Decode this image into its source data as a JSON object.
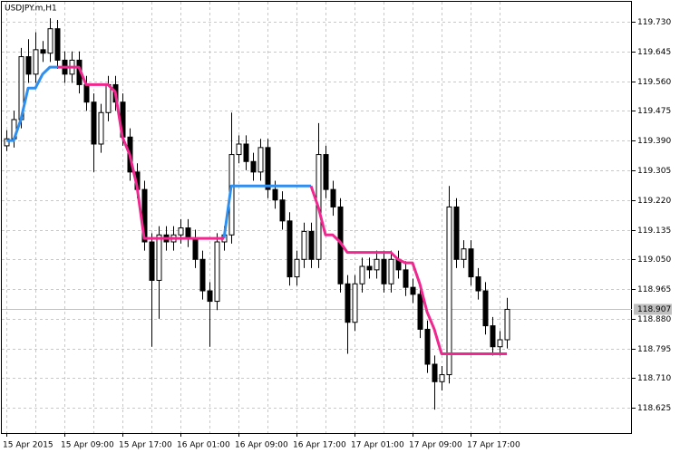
{
  "chart_data": {
    "type": "candlestick",
    "title": "USDJPY.m,H1",
    "categories": [
      "15 Apr 2015",
      null,
      null,
      null,
      null,
      null,
      null,
      null,
      "15 Apr 09:00",
      null,
      null,
      null,
      null,
      null,
      null,
      null,
      "15 Apr 17:00",
      null,
      null,
      null,
      null,
      null,
      null,
      null,
      "16 Apr 01:00",
      null,
      null,
      null,
      null,
      null,
      null,
      null,
      "16 Apr 09:00",
      null,
      null,
      null,
      null,
      null,
      null,
      null,
      "16 Apr 17:00",
      null,
      null,
      null,
      null,
      null,
      null,
      null,
      "17 Apr 01:00",
      null,
      null,
      null,
      null,
      null,
      null,
      null,
      "17 Apr 09:00",
      null,
      null,
      null,
      null,
      null,
      null,
      null,
      "17 Apr 17:00",
      null,
      null,
      null,
      null,
      null
    ],
    "open": [
      119.375,
      119.395,
      119.45,
      119.63,
      119.58,
      119.65,
      119.64,
      119.71,
      119.62,
      119.58,
      119.62,
      119.55,
      119.5,
      119.38,
      119.47,
      119.55,
      119.5,
      119.4,
      119.3,
      119.25,
      119.1,
      118.99,
      119.12,
      119.1,
      119.12,
      119.14,
      119.11,
      119.05,
      118.96,
      118.93,
      119.1,
      119.12,
      119.35,
      119.38,
      119.33,
      119.3,
      119.37,
      119.25,
      119.22,
      119.16,
      119.0,
      119.05,
      119.13,
      119.05,
      119.35,
      119.25,
      119.2,
      118.98,
      118.87,
      118.98,
      119.03,
      119.02,
      119.05,
      118.98,
      119.05,
      119.02,
      118.97,
      118.95,
      118.85,
      118.75,
      118.7,
      118.72,
      119.2,
      119.05,
      119.08,
      119.0,
      118.96,
      118.86,
      118.8,
      118.82
    ],
    "high": [
      119.42,
      119.475,
      119.655,
      119.68,
      119.7,
      119.675,
      119.74,
      119.735,
      119.645,
      119.645,
      119.645,
      119.575,
      119.525,
      119.495,
      119.575,
      119.575,
      119.525,
      119.425,
      119.325,
      119.275,
      119.125,
      119.145,
      119.145,
      119.145,
      119.165,
      119.165,
      119.135,
      119.075,
      118.985,
      119.125,
      119.145,
      119.47,
      119.405,
      119.405,
      119.355,
      119.395,
      119.395,
      119.275,
      119.245,
      119.185,
      119.075,
      119.155,
      119.155,
      119.44,
      119.375,
      119.275,
      119.225,
      119.005,
      119.005,
      119.055,
      119.055,
      119.075,
      119.075,
      119.075,
      119.075,
      119.045,
      118.995,
      118.975,
      118.875,
      118.775,
      118.745,
      119.26,
      119.225,
      119.105,
      119.105,
      119.025,
      118.985,
      118.885,
      118.845,
      118.94
    ],
    "low": [
      119.36,
      119.37,
      119.425,
      119.555,
      119.555,
      119.615,
      119.615,
      119.595,
      119.555,
      119.555,
      119.525,
      119.475,
      119.3,
      119.355,
      119.445,
      119.475,
      119.375,
      119.275,
      119.225,
      119.075,
      118.8,
      118.88,
      119.075,
      119.075,
      119.095,
      119.085,
      119.025,
      118.935,
      118.8,
      118.905,
      119.075,
      119.095,
      119.325,
      119.305,
      119.275,
      119.275,
      119.225,
      119.195,
      119.135,
      118.975,
      118.975,
      119.025,
      119.025,
      119.025,
      119.225,
      119.175,
      118.955,
      118.78,
      118.845,
      118.955,
      118.995,
      118.995,
      118.955,
      118.955,
      118.995,
      118.945,
      118.925,
      118.825,
      118.725,
      118.62,
      118.675,
      118.695,
      119.025,
      119.025,
      118.975,
      118.935,
      118.835,
      118.775,
      118.775,
      118.795
    ],
    "close": [
      119.395,
      119.45,
      119.63,
      119.58,
      119.65,
      119.64,
      119.71,
      119.62,
      119.58,
      119.62,
      119.55,
      119.5,
      119.38,
      119.47,
      119.55,
      119.5,
      119.4,
      119.3,
      119.25,
      119.1,
      118.99,
      119.12,
      119.1,
      119.12,
      119.14,
      119.11,
      119.05,
      118.96,
      118.93,
      119.1,
      119.12,
      119.35,
      119.38,
      119.33,
      119.3,
      119.37,
      119.25,
      119.22,
      119.16,
      119.0,
      119.05,
      119.13,
      119.05,
      119.35,
      119.25,
      119.2,
      118.98,
      118.87,
      118.98,
      119.03,
      119.02,
      119.05,
      118.98,
      119.05,
      119.02,
      118.97,
      118.95,
      118.85,
      118.75,
      118.7,
      118.72,
      119.2,
      119.05,
      119.08,
      119.0,
      118.96,
      118.86,
      118.8,
      118.82,
      118.907
    ],
    "lines": [
      {
        "color": "#2f8fef",
        "values": [
          119.39,
          119.39,
          119.45,
          119.54,
          119.54,
          119.58,
          119.6,
          119.6,
          null,
          null,
          null,
          null,
          null,
          null,
          null,
          null,
          null,
          null,
          null,
          null,
          null,
          null,
          null,
          null,
          null,
          null,
          null,
          null,
          null,
          null,
          119.11,
          119.26,
          119.26,
          119.26,
          119.26,
          119.26,
          119.26,
          119.26,
          119.26,
          119.26,
          119.26,
          119.26,
          119.26,
          null,
          null,
          null,
          null,
          null,
          null,
          null,
          null,
          null,
          null,
          null,
          null,
          null,
          null,
          null,
          null,
          null,
          null,
          null,
          null,
          null,
          null,
          null,
          null,
          null,
          null,
          null
        ]
      },
      {
        "color": "#f0278f",
        "values": [
          null,
          null,
          null,
          null,
          null,
          null,
          null,
          119.6,
          119.6,
          119.6,
          119.6,
          119.55,
          119.55,
          119.55,
          119.55,
          119.53,
          119.4,
          119.35,
          119.26,
          119.11,
          119.11,
          119.11,
          119.11,
          119.11,
          119.11,
          119.11,
          119.11,
          119.11,
          119.11,
          119.11,
          119.11,
          null,
          null,
          null,
          null,
          null,
          null,
          null,
          null,
          null,
          null,
          null,
          119.26,
          119.2,
          119.12,
          119.12,
          119.1,
          119.07,
          119.07,
          119.07,
          119.07,
          119.07,
          119.07,
          119.07,
          119.05,
          119.04,
          119.04,
          118.98,
          118.9,
          118.85,
          118.78,
          118.78,
          118.78,
          118.78,
          118.78,
          118.78,
          118.78,
          118.78,
          118.78,
          118.78
        ]
      }
    ],
    "current_price": 118.907,
    "ylim": [
      118.553,
      119.787
    ],
    "yticks": [
      118.625,
      {
        "value": 118.71,
        "label": "118.710"
      },
      118.795,
      {
        "value": 118.88,
        "label": "118.880"
      },
      118.965,
      {
        "value": 119.05,
        "label": "119.050"
      },
      119.135,
      {
        "value": 119.22,
        "label": "119.220"
      },
      119.305,
      {
        "value": 119.39,
        "label": "119.390"
      },
      119.475,
      {
        "value": 119.56,
        "label": "119.560"
      },
      119.645,
      {
        "value": 119.73,
        "label": "119.730"
      }
    ],
    "grid": true
  }
}
